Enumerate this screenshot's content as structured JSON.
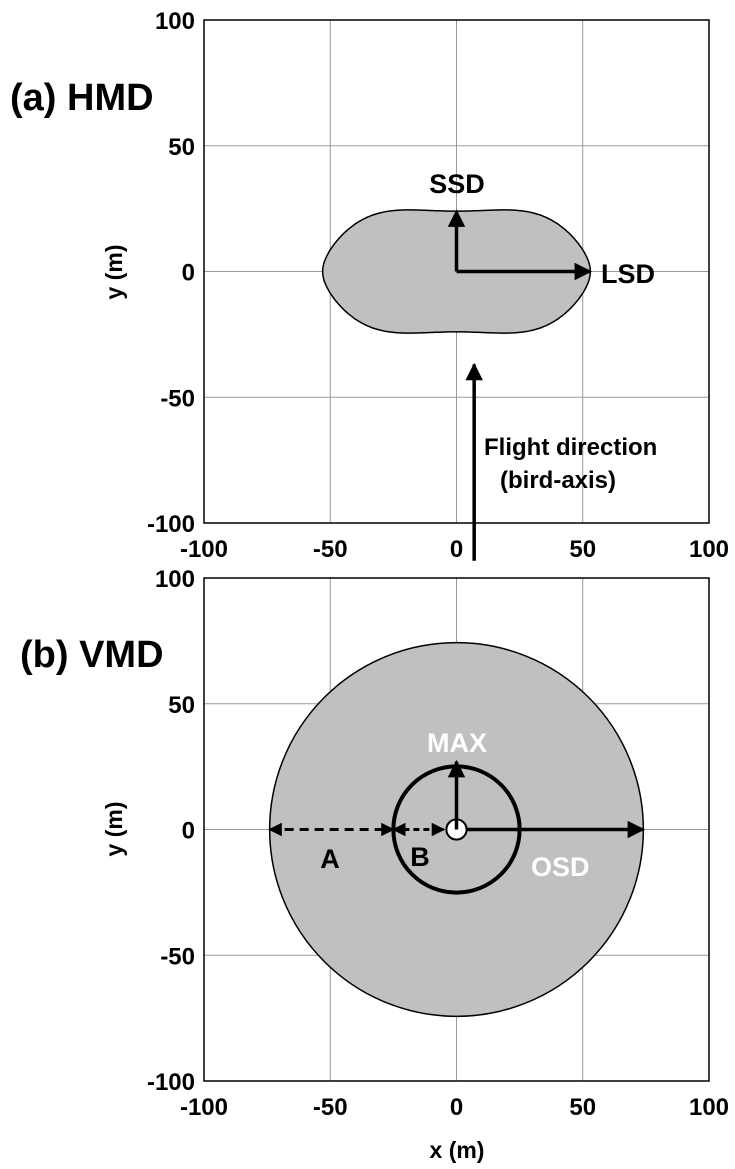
{
  "chart_data": [
    {
      "type": "diagram",
      "title": "(a) HMD",
      "xlim": [
        -100,
        100
      ],
      "ylim": [
        -100,
        100
      ],
      "xticks": [
        -100,
        -50,
        0,
        50,
        100
      ],
      "yticks": [
        -100,
        -50,
        0,
        50,
        100
      ],
      "xlabel": "",
      "ylabel": "y (m)",
      "grid": true,
      "shape": {
        "kind": "peanut",
        "x_extent": [
          -53,
          53
        ],
        "y_extent_center": [
          -24,
          24
        ],
        "y_extent_max": [
          -29,
          29
        ],
        "fill": "#c0c0c0"
      },
      "vectors": [
        {
          "label": "SSD",
          "from": [
            0,
            0
          ],
          "to": [
            0,
            24
          ]
        },
        {
          "label": "LSD",
          "from": [
            0,
            0
          ],
          "to": [
            53,
            0
          ]
        }
      ],
      "flight_arrow": {
        "x": 7,
        "from_y": -115,
        "to_y": -37
      },
      "annotations": {
        "ssd": "SSD",
        "lsd": "LSD",
        "flight1": "Flight direction",
        "flight2": "(bird-axis)"
      }
    },
    {
      "type": "diagram",
      "title": "(b) VMD",
      "xlim": [
        -100,
        100
      ],
      "ylim": [
        -100,
        100
      ],
      "xticks": [
        -100,
        -50,
        0,
        50,
        100
      ],
      "yticks": [
        -100,
        -50,
        0,
        50,
        100
      ],
      "xlabel": "x (m)",
      "ylabel": "y (m)",
      "grid": true,
      "outer_circle": {
        "radius": 74,
        "fill": "#c0c0c0"
      },
      "inner_circle": {
        "radius": 25
      },
      "center_circle": {
        "radius": 4
      },
      "vectors": [
        {
          "label": "MAX",
          "from": [
            0,
            0
          ],
          "to": [
            0,
            27
          ]
        },
        {
          "label": "OSD",
          "from": [
            0,
            0
          ],
          "to": [
            74,
            0
          ]
        }
      ],
      "double_arrows": [
        {
          "label": "A",
          "from": -74,
          "to": -25,
          "dashed": true
        },
        {
          "label": "B",
          "from": -25,
          "to": -5,
          "dashed": true
        }
      ],
      "annotations": {
        "max": "MAX",
        "osd": "OSD",
        "a": "A",
        "b": "B"
      }
    }
  ]
}
